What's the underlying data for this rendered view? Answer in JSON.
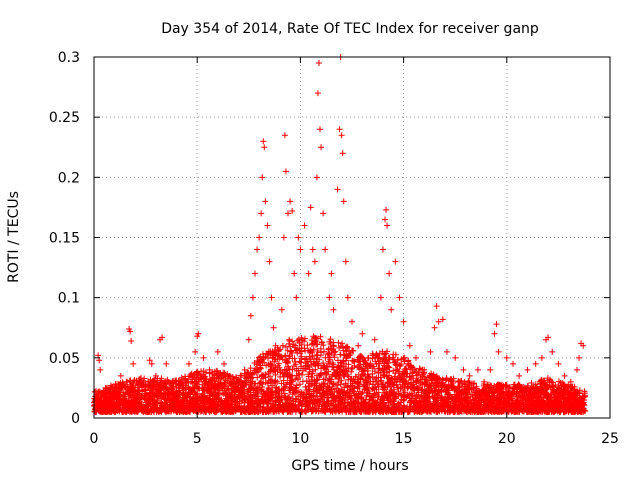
{
  "chart_data": {
    "type": "scatter",
    "title": "Day 354 of 2014, Rate Of TEC Index for receiver ganp",
    "xlabel": "GPS time / hours",
    "ylabel": "ROTI / TECUs",
    "xlim": [
      0,
      25
    ],
    "ylim": [
      0,
      0.3
    ],
    "x_ticks": [
      0,
      5,
      10,
      15,
      20,
      25
    ],
    "x_tick_labels": [
      "0",
      "5",
      "10",
      "15",
      "20",
      "25"
    ],
    "y_ticks": [
      0,
      0.05,
      0.1,
      0.15,
      0.2,
      0.25,
      0.3
    ],
    "y_tick_labels": [
      "0",
      "0.05",
      "0.1",
      "0.15",
      "0.2",
      "0.25",
      "0.3"
    ],
    "grid": true,
    "marker": "+",
    "color": "#ff0000",
    "series": [
      {
        "name": "ROTI",
        "points": [
          [
            0.1,
            0.015
          ],
          [
            0.2,
            0.052
          ],
          [
            0.25,
            0.048
          ],
          [
            0.3,
            0.04
          ],
          [
            0.5,
            0.02
          ],
          [
            0.8,
            0.025
          ],
          [
            1.0,
            0.02
          ],
          [
            1.3,
            0.035
          ],
          [
            1.6,
            0.03
          ],
          [
            1.7,
            0.074
          ],
          [
            1.75,
            0.072
          ],
          [
            1.8,
            0.064
          ],
          [
            1.9,
            0.045
          ],
          [
            2.2,
            0.03
          ],
          [
            2.5,
            0.02
          ],
          [
            2.7,
            0.048
          ],
          [
            2.8,
            0.045
          ],
          [
            3.0,
            0.035
          ],
          [
            3.2,
            0.065
          ],
          [
            3.3,
            0.067
          ],
          [
            3.5,
            0.045
          ],
          [
            3.8,
            0.025
          ],
          [
            4.2,
            0.03
          ],
          [
            4.6,
            0.045
          ],
          [
            4.9,
            0.055
          ],
          [
            5.0,
            0.068
          ],
          [
            5.05,
            0.07
          ],
          [
            5.3,
            0.05
          ],
          [
            5.6,
            0.04
          ],
          [
            6.0,
            0.055
          ],
          [
            6.3,
            0.045
          ],
          [
            6.6,
            0.03
          ],
          [
            7.0,
            0.025
          ],
          [
            7.3,
            0.04
          ],
          [
            7.5,
            0.065
          ],
          [
            7.6,
            0.085
          ],
          [
            7.7,
            0.1
          ],
          [
            7.8,
            0.12
          ],
          [
            7.9,
            0.14
          ],
          [
            8.0,
            0.15
          ],
          [
            8.1,
            0.17
          ],
          [
            8.15,
            0.2
          ],
          [
            8.2,
            0.23
          ],
          [
            8.25,
            0.225
          ],
          [
            8.3,
            0.18
          ],
          [
            8.4,
            0.16
          ],
          [
            8.5,
            0.13
          ],
          [
            8.6,
            0.1
          ],
          [
            8.7,
            0.075
          ],
          [
            8.8,
            0.06
          ],
          [
            9.0,
            0.05
          ],
          [
            9.1,
            0.09
          ],
          [
            9.2,
            0.15
          ],
          [
            9.25,
            0.235
          ],
          [
            9.3,
            0.205
          ],
          [
            9.4,
            0.17
          ],
          [
            9.5,
            0.18
          ],
          [
            9.6,
            0.172
          ],
          [
            9.7,
            0.12
          ],
          [
            9.8,
            0.1
          ],
          [
            9.9,
            0.15
          ],
          [
            10.0,
            0.14
          ],
          [
            10.2,
            0.16
          ],
          [
            10.4,
            0.12
          ],
          [
            10.5,
            0.175
          ],
          [
            10.6,
            0.14
          ],
          [
            10.7,
            0.13
          ],
          [
            10.8,
            0.2
          ],
          [
            10.85,
            0.27
          ],
          [
            10.9,
            0.295
          ],
          [
            10.95,
            0.24
          ],
          [
            11.0,
            0.225
          ],
          [
            11.1,
            0.17
          ],
          [
            11.2,
            0.14
          ],
          [
            11.4,
            0.1
          ],
          [
            11.5,
            0.12
          ],
          [
            11.6,
            0.09
          ],
          [
            11.8,
            0.19
          ],
          [
            11.9,
            0.24
          ],
          [
            11.95,
            0.3
          ],
          [
            12.0,
            0.235
          ],
          [
            12.05,
            0.22
          ],
          [
            12.1,
            0.18
          ],
          [
            12.2,
            0.13
          ],
          [
            12.3,
            0.1
          ],
          [
            12.5,
            0.08
          ],
          [
            12.8,
            0.06
          ],
          [
            13.0,
            0.07
          ],
          [
            13.3,
            0.05
          ],
          [
            13.6,
            0.065
          ],
          [
            13.9,
            0.1
          ],
          [
            14.0,
            0.14
          ],
          [
            14.1,
            0.165
          ],
          [
            14.15,
            0.173
          ],
          [
            14.2,
            0.16
          ],
          [
            14.3,
            0.12
          ],
          [
            14.4,
            0.09
          ],
          [
            14.6,
            0.13
          ],
          [
            14.8,
            0.1
          ],
          [
            15.0,
            0.08
          ],
          [
            15.3,
            0.06
          ],
          [
            15.6,
            0.05
          ],
          [
            16.0,
            0.04
          ],
          [
            16.3,
            0.055
          ],
          [
            16.5,
            0.075
          ],
          [
            16.6,
            0.093
          ],
          [
            16.7,
            0.08
          ],
          [
            16.9,
            0.082
          ],
          [
            17.1,
            0.055
          ],
          [
            17.5,
            0.05
          ],
          [
            17.9,
            0.04
          ],
          [
            18.2,
            0.035
          ],
          [
            18.6,
            0.04
          ],
          [
            18.9,
            0.03
          ],
          [
            19.2,
            0.04
          ],
          [
            19.4,
            0.07
          ],
          [
            19.5,
            0.078
          ],
          [
            19.6,
            0.055
          ],
          [
            20.0,
            0.05
          ],
          [
            20.3,
            0.045
          ],
          [
            20.6,
            0.035
          ],
          [
            21.0,
            0.04
          ],
          [
            21.4,
            0.045
          ],
          [
            21.7,
            0.05
          ],
          [
            21.9,
            0.065
          ],
          [
            22.0,
            0.067
          ],
          [
            22.2,
            0.055
          ],
          [
            22.5,
            0.045
          ],
          [
            22.8,
            0.035
          ],
          [
            23.1,
            0.03
          ],
          [
            23.4,
            0.04
          ],
          [
            23.5,
            0.05
          ],
          [
            23.6,
            0.062
          ],
          [
            23.7,
            0.06
          ],
          [
            23.75,
            0.015
          ]
        ]
      }
    ],
    "dense_band": {
      "description": "dense cloud of points",
      "x_range": [
        0,
        23.8
      ],
      "envelope": [
        [
          0.0,
          0.02
        ],
        [
          1.0,
          0.025
        ],
        [
          2.0,
          0.03
        ],
        [
          3.0,
          0.03
        ],
        [
          4.0,
          0.028
        ],
        [
          5.0,
          0.035
        ],
        [
          6.0,
          0.035
        ],
        [
          7.0,
          0.03
        ],
        [
          8.0,
          0.045
        ],
        [
          9.0,
          0.055
        ],
        [
          10.0,
          0.06
        ],
        [
          11.0,
          0.06
        ],
        [
          12.0,
          0.055
        ],
        [
          13.0,
          0.045
        ],
        [
          14.0,
          0.05
        ],
        [
          15.0,
          0.045
        ],
        [
          16.0,
          0.035
        ],
        [
          17.0,
          0.03
        ],
        [
          18.0,
          0.028
        ],
        [
          19.0,
          0.025
        ],
        [
          20.0,
          0.025
        ],
        [
          21.0,
          0.025
        ],
        [
          22.0,
          0.03
        ],
        [
          23.0,
          0.025
        ],
        [
          23.8,
          0.02
        ]
      ],
      "floor": 0.005
    }
  }
}
